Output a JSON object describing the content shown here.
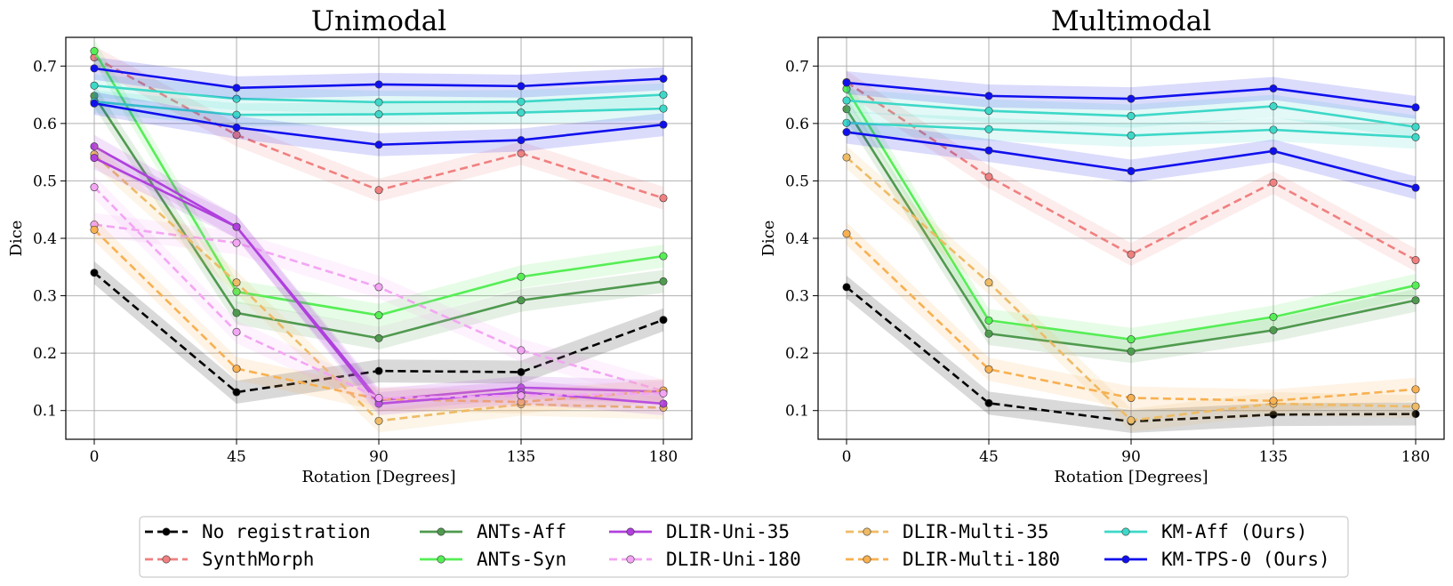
{
  "chart_data": {
    "type": "line",
    "x": [
      0,
      45,
      90,
      135,
      180
    ],
    "xlabel": "Rotation [Degrees]",
    "ylabel": "Dice",
    "ylim": [
      0.05,
      0.75
    ],
    "yticks": [
      0.1,
      0.2,
      0.3,
      0.4,
      0.5,
      0.6,
      0.7
    ],
    "grid": true,
    "legend_position": "bottom",
    "series_styles": [
      {
        "name": "No registration",
        "color": "#000000",
        "dashed": true
      },
      {
        "name": "SynthMorph",
        "color": "#f08080",
        "dashed": true
      },
      {
        "name": "ANTs-Aff",
        "color": "#4f9a4f",
        "dashed": false
      },
      {
        "name": "ANTs-Syn",
        "color": "#55ee55",
        "dashed": false
      },
      {
        "name": "DLIR-Uni-35",
        "color": "#b040dd",
        "dashed": false
      },
      {
        "name": "DLIR-Uni-180",
        "color": "#f3a5f3",
        "dashed": true
      },
      {
        "name": "DLIR-Multi-35",
        "color": "#eebb66",
        "dashed": true
      },
      {
        "name": "DLIR-Multi-180",
        "color": "#f8b050",
        "dashed": true
      },
      {
        "name": "KM-Aff (Ours)",
        "color": "#3dd8c8",
        "dashed": false
      },
      {
        "name": "KM-TPS-0 (Ours)",
        "color": "#1010ee",
        "dashed": false
      }
    ],
    "panels": [
      {
        "title": "Unimodal",
        "series": [
          {
            "name": "No registration",
            "values": [
              0.34,
              0.132,
              0.169,
              0.167,
              0.258
            ]
          },
          {
            "name": "SynthMorph",
            "values": [
              0.715,
              0.58,
              0.484,
              0.548,
              0.47
            ]
          },
          {
            "name": "ANTs-Aff",
            "values": [
              0.648,
              0.27,
              0.226,
              0.292,
              0.325
            ]
          },
          {
            "name": "ANTs-Syn",
            "values": [
              0.726,
              0.307,
              0.266,
              0.333,
              0.369
            ]
          },
          {
            "name": "DLIR-Uni-35",
            "values": [
              0.56,
              0.42,
              0.118,
              0.14,
              0.133
            ]
          },
          {
            "name": "DLIR-Uni-180",
            "values": [
              0.424,
              0.392,
              0.315,
              0.205,
              0.134
            ]
          },
          {
            "name": "DLIR-Multi-35",
            "values": [
              0.546,
              0.323,
              0.082,
              0.111,
              0.105
            ]
          },
          {
            "name": "DLIR-Multi-180",
            "values": [
              0.415,
              0.173,
              0.12,
              0.115,
              0.135
            ]
          },
          {
            "name": "KM-Aff (Ours)",
            "values": [
              0.666,
              0.643,
              0.637,
              0.638,
              0.65
            ]
          },
          {
            "name": "KM-TPS-0 (Ours)",
            "values": [
              0.696,
              0.662,
              0.668,
              0.665,
              0.678
            ]
          },
          {
            "name": "DLIR-Uni-35",
            "values": [
              0.54,
              0.42,
              0.112,
              0.132,
              0.112
            ]
          },
          {
            "name": "DLIR-Uni-180",
            "values": [
              0.489,
              0.237,
              0.122,
              0.126,
              0.13
            ]
          },
          {
            "name": "KM-Aff (Ours)",
            "values": [
              0.638,
              0.615,
              0.616,
              0.619,
              0.626
            ]
          },
          {
            "name": "KM-TPS-0 (Ours)",
            "values": [
              0.635,
              0.593,
              0.563,
              0.571,
              0.598
            ]
          }
        ]
      },
      {
        "title": "Multimodal",
        "series": [
          {
            "name": "No registration",
            "values": [
              0.315,
              0.113,
              0.081,
              0.093,
              0.094
            ]
          },
          {
            "name": "SynthMorph",
            "values": [
              0.672,
              0.507,
              0.372,
              0.497,
              0.362
            ]
          },
          {
            "name": "ANTs-Aff",
            "values": [
              0.625,
              0.234,
              0.203,
              0.24,
              0.292
            ]
          },
          {
            "name": "ANTs-Syn",
            "values": [
              0.66,
              0.257,
              0.224,
              0.263,
              0.318
            ]
          },
          {
            "name": "DLIR-Multi-35",
            "values": [
              0.541,
              0.323,
              0.083,
              0.112,
              0.107
            ]
          },
          {
            "name": "DLIR-Multi-180",
            "values": [
              0.408,
              0.172,
              0.122,
              0.117,
              0.137
            ]
          },
          {
            "name": "KM-Aff (Ours)",
            "values": [
              0.64,
              0.622,
              0.613,
              0.63,
              0.594
            ]
          },
          {
            "name": "KM-TPS-0 (Ours)",
            "values": [
              0.671,
              0.648,
              0.643,
              0.661,
              0.628
            ]
          },
          {
            "name": "KM-Aff (Ours)",
            "values": [
              0.601,
              0.59,
              0.579,
              0.589,
              0.576
            ]
          },
          {
            "name": "KM-TPS-0 (Ours)",
            "values": [
              0.585,
              0.553,
              0.517,
              0.552,
              0.488
            ]
          }
        ]
      }
    ]
  }
}
